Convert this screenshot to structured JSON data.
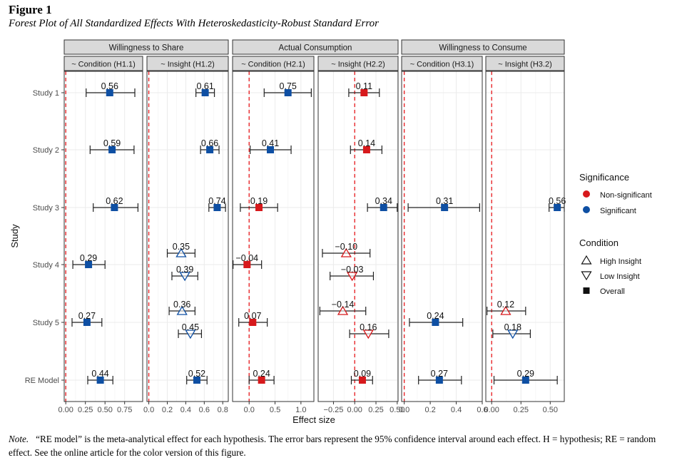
{
  "figure": {
    "label": "Figure 1",
    "title": "Forest Plot of All Standardized Effects With Heteroskedasticity-Robust Standard Error",
    "note_lead": "Note.",
    "note_text": "“RE model” is the meta-analytical effect for each hypothesis. The error bars represent the 95% confidence interval around each effect. H = hypothesis; RE = random effect. See the online article for the color version of this figure."
  },
  "colors": {
    "significant": "#0E4FA3",
    "non_significant": "#D7191C",
    "reference_line": "#E8262A",
    "strip_fill": "#D9D9D9",
    "panel_grid": "#EBEBEB"
  },
  "chart_data": {
    "type": "forest",
    "xlabel": "Effect size",
    "ylabel": "Study",
    "row_labels": [
      "Study 1",
      "Study 2",
      "Study 3",
      "Study 4",
      "Study 5",
      "RE Model"
    ],
    "facet_groups": [
      "Willingness to Share",
      "Actual Consumption",
      "Willingness to Consume"
    ],
    "legend": {
      "significance_title": "Significance",
      "significance_items": [
        {
          "label": "Non-significant",
          "key": "non_significant"
        },
        {
          "label": "Significant",
          "key": "significant"
        }
      ],
      "condition_title": "Condition",
      "condition_items": [
        {
          "label": "High Insight",
          "shape": "triangle-up"
        },
        {
          "label": "Low Insight",
          "shape": "triangle-down"
        },
        {
          "label": "Overall",
          "shape": "square"
        }
      ]
    },
    "panels": [
      {
        "label": "~ Condition (H1.1)",
        "group": 0,
        "xlim": [
          -0.02,
          0.98
        ],
        "ticks": [
          0,
          0.25,
          0.5,
          0.75
        ],
        "tick_labels": [
          "0.00",
          "0.25",
          "0.50",
          "0.75"
        ],
        "estimates": [
          {
            "row": 0,
            "cond": "Overall",
            "est": 0.56,
            "lo": 0.26,
            "hi": 0.88,
            "sig": true,
            "label": "0.56"
          },
          {
            "row": 1,
            "cond": "Overall",
            "est": 0.59,
            "lo": 0.31,
            "hi": 0.87,
            "sig": true,
            "label": "0.59"
          },
          {
            "row": 2,
            "cond": "Overall",
            "est": 0.62,
            "lo": 0.35,
            "hi": 0.92,
            "sig": true,
            "label": "0.62"
          },
          {
            "row": 3,
            "cond": "Overall",
            "est": 0.29,
            "lo": 0.09,
            "hi": 0.5,
            "sig": true,
            "label": "0.29"
          },
          {
            "row": 4,
            "cond": "Overall",
            "est": 0.27,
            "lo": 0.08,
            "hi": 0.46,
            "sig": true,
            "label": "0.27"
          },
          {
            "row": 5,
            "cond": "Overall",
            "est": 0.44,
            "lo": 0.28,
            "hi": 0.6,
            "sig": true,
            "label": "0.44"
          }
        ]
      },
      {
        "label": "~ Insight (H1.2)",
        "group": 0,
        "xlim": [
          -0.02,
          0.86
        ],
        "ticks": [
          0,
          0.2,
          0.4,
          0.6,
          0.8
        ],
        "tick_labels": [
          "0.0",
          "0.2",
          "0.4",
          "0.6",
          "0.8"
        ],
        "estimates": [
          {
            "row": 0,
            "cond": "Overall",
            "est": 0.61,
            "lo": 0.51,
            "hi": 0.71,
            "sig": true,
            "label": "0.61"
          },
          {
            "row": 1,
            "cond": "Overall",
            "est": 0.66,
            "lo": 0.56,
            "hi": 0.76,
            "sig": true,
            "label": "0.66"
          },
          {
            "row": 2,
            "cond": "Overall",
            "est": 0.74,
            "lo": 0.65,
            "hi": 0.83,
            "sig": true,
            "label": "0.74"
          },
          {
            "row": 3,
            "cond": "High Insight",
            "est": 0.35,
            "lo": 0.2,
            "hi": 0.5,
            "sig": true,
            "label": "0.35"
          },
          {
            "row": 3,
            "cond": "Low Insight",
            "est": 0.39,
            "lo": 0.25,
            "hi": 0.53,
            "sig": true,
            "label": "0.39"
          },
          {
            "row": 4,
            "cond": "High Insight",
            "est": 0.36,
            "lo": 0.22,
            "hi": 0.5,
            "sig": true,
            "label": "0.36"
          },
          {
            "row": 4,
            "cond": "Low Insight",
            "est": 0.45,
            "lo": 0.32,
            "hi": 0.57,
            "sig": true,
            "label": "0.45"
          },
          {
            "row": 5,
            "cond": "Overall",
            "est": 0.52,
            "lo": 0.41,
            "hi": 0.63,
            "sig": true,
            "label": "0.52"
          }
        ]
      },
      {
        "label": "~ Condition (H2.1)",
        "group": 1,
        "xlim": [
          -0.32,
          1.25
        ],
        "ticks": [
          0,
          0.5,
          1
        ],
        "tick_labels": [
          "0.0",
          "0.5",
          "1.0"
        ],
        "estimates": [
          {
            "row": 0,
            "cond": "Overall",
            "est": 0.75,
            "lo": 0.29,
            "hi": 1.2,
            "sig": true,
            "label": "0.75"
          },
          {
            "row": 1,
            "cond": "Overall",
            "est": 0.41,
            "lo": 0.02,
            "hi": 0.81,
            "sig": true,
            "label": "0.41"
          },
          {
            "row": 2,
            "cond": "Overall",
            "est": 0.19,
            "lo": -0.17,
            "hi": 0.55,
            "sig": false,
            "label": "0.19"
          },
          {
            "row": 3,
            "cond": "Overall",
            "est": -0.04,
            "lo": -0.31,
            "hi": 0.24,
            "sig": false,
            "label": "-0.04"
          },
          {
            "row": 4,
            "cond": "Overall",
            "est": 0.07,
            "lo": -0.2,
            "hi": 0.35,
            "sig": false,
            "label": "0.07"
          },
          {
            "row": 5,
            "cond": "Overall",
            "est": 0.24,
            "lo": 0,
            "hi": 0.48,
            "sig": false,
            "label": "0.24"
          }
        ]
      },
      {
        "label": "~ Insight (H2.2)",
        "group": 1,
        "xlim": [
          -0.43,
          0.51
        ],
        "ticks": [
          -0.25,
          0,
          0.25,
          0.5
        ],
        "tick_labels": [
          "-0.25",
          "0.00",
          "0.25",
          "0.50"
        ],
        "estimates": [
          {
            "row": 0,
            "cond": "Overall",
            "est": 0.11,
            "lo": -0.07,
            "hi": 0.29,
            "sig": false,
            "label": "0.11"
          },
          {
            "row": 1,
            "cond": "Overall",
            "est": 0.14,
            "lo": -0.05,
            "hi": 0.32,
            "sig": false,
            "label": "0.14"
          },
          {
            "row": 2,
            "cond": "Overall",
            "est": 0.34,
            "lo": 0.15,
            "hi": 0.5,
            "sig": true,
            "label": "0.34"
          },
          {
            "row": 3,
            "cond": "High Insight",
            "est": -0.1,
            "lo": -0.38,
            "hi": 0.18,
            "sig": false,
            "label": "-0.10"
          },
          {
            "row": 3,
            "cond": "Low Insight",
            "est": -0.03,
            "lo": -0.29,
            "hi": 0.22,
            "sig": false,
            "label": "-0.03"
          },
          {
            "row": 4,
            "cond": "High Insight",
            "est": -0.14,
            "lo": -0.41,
            "hi": 0.13,
            "sig": false,
            "label": "-0.14"
          },
          {
            "row": 4,
            "cond": "Low Insight",
            "est": 0.16,
            "lo": -0.06,
            "hi": 0.4,
            "sig": false,
            "label": "0.16"
          },
          {
            "row": 5,
            "cond": "Overall",
            "est": 0.09,
            "lo": -0.04,
            "hi": 0.21,
            "sig": false,
            "label": "0.09"
          }
        ]
      },
      {
        "label": "~ Condition (H3.1)",
        "group": 2,
        "xlim": [
          -0.02,
          0.6
        ],
        "ticks": [
          0,
          0.2,
          0.4,
          0.6
        ],
        "tick_labels": [
          "0.0",
          "0.2",
          "0.4",
          "0.6"
        ],
        "estimates": [
          {
            "row": 2,
            "cond": "Overall",
            "est": 0.31,
            "lo": 0.03,
            "hi": 0.58,
            "sig": true,
            "label": "0.31"
          },
          {
            "row": 4,
            "cond": "Overall",
            "est": 0.24,
            "lo": 0.04,
            "hi": 0.45,
            "sig": true,
            "label": "0.24"
          },
          {
            "row": 5,
            "cond": "Overall",
            "est": 0.27,
            "lo": 0.11,
            "hi": 0.44,
            "sig": true,
            "label": "0.27"
          }
        ]
      },
      {
        "label": "~ Insight (H3.2)",
        "group": 2,
        "xlim": [
          -0.05,
          0.62
        ],
        "ticks": [
          0,
          0.25,
          0.5
        ],
        "tick_labels": [
          "0.00",
          "0.25",
          "0.50"
        ],
        "estimates": [
          {
            "row": 2,
            "cond": "Overall",
            "est": 0.56,
            "lo": 0.49,
            "hi": 0.62,
            "sig": true,
            "label": "0.56"
          },
          {
            "row": 4,
            "cond": "High Insight",
            "est": 0.12,
            "lo": -0.04,
            "hi": 0.29,
            "sig": false,
            "label": "0.12"
          },
          {
            "row": 4,
            "cond": "Low Insight",
            "est": 0.18,
            "lo": 0.01,
            "hi": 0.33,
            "sig": true,
            "label": "0.18"
          },
          {
            "row": 5,
            "cond": "Overall",
            "est": 0.29,
            "lo": 0.02,
            "hi": 0.56,
            "sig": true,
            "label": "0.29"
          }
        ]
      }
    ]
  }
}
